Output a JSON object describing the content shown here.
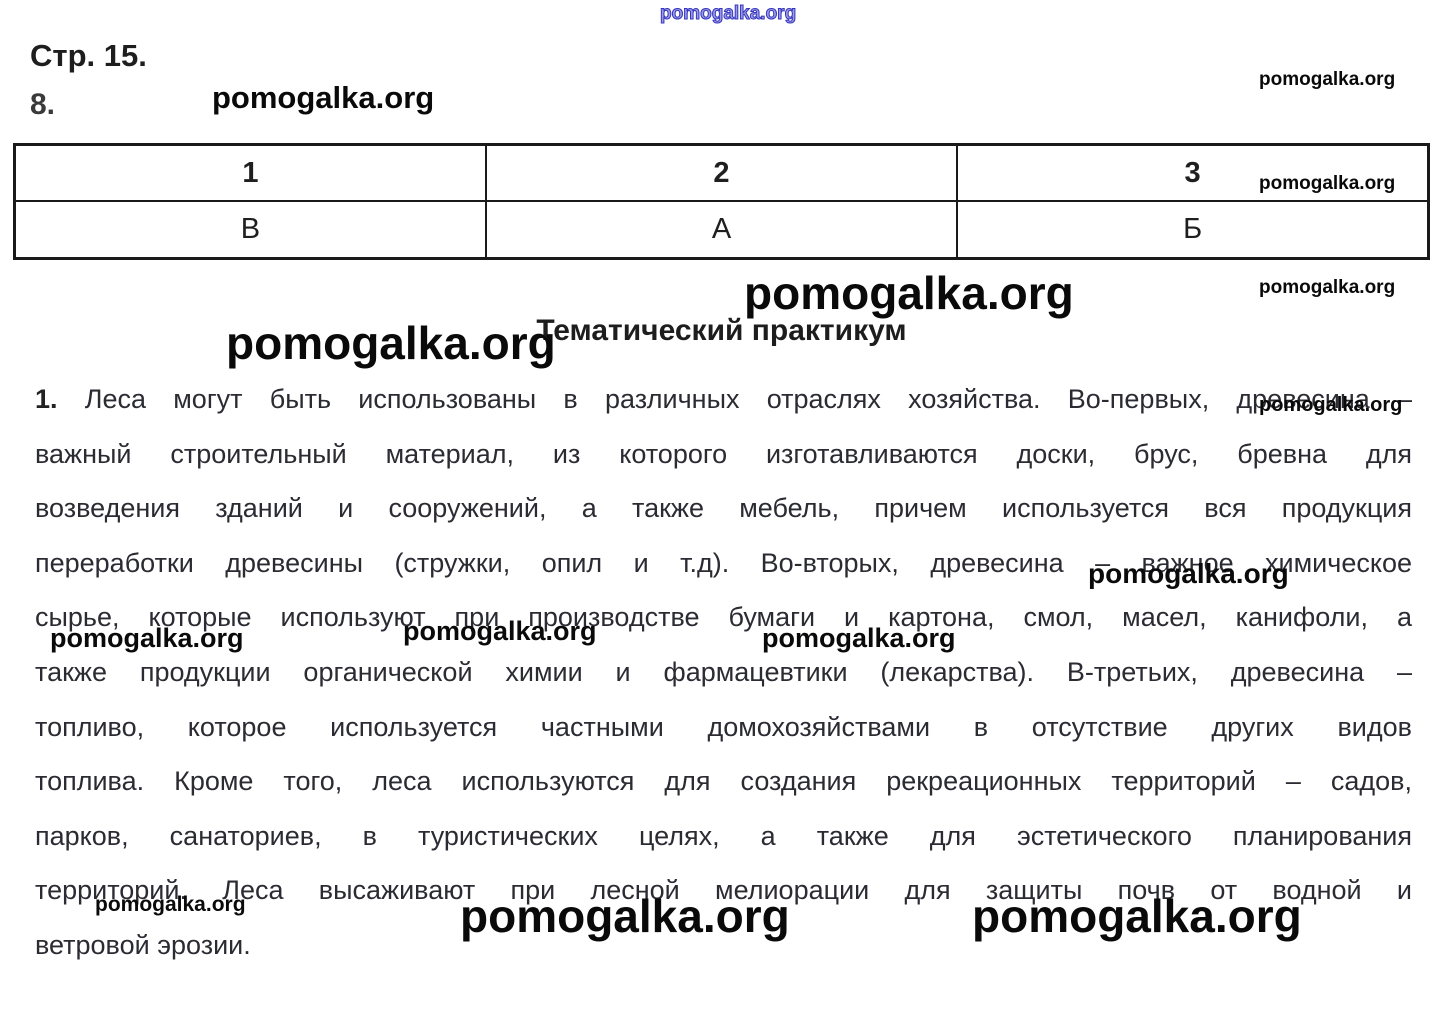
{
  "page": {
    "label": "Стр. 15.",
    "question_number": "8."
  },
  "table": {
    "headers": [
      "1",
      "2",
      "3"
    ],
    "answers": [
      "В",
      "А",
      "Б"
    ]
  },
  "heading": "Тематический практикум",
  "paragraph": {
    "number": "1.",
    "lines": [
      "Леса могут быть использованы в различных отраслях хозяйства. Во-первых, древесина –",
      "важный строительный материал, из которого изготавливаются доски, брус, бревна для",
      "возведения зданий и сооружений, а также мебель, причем используется вся продукция",
      "переработки древесины (стружки, опил и т.д). Во-вторых, древесина – важное химическое",
      "сырье, которые используют при производстве бумаги и картона, смол, масел, канифоли, а",
      "также продукции органической химии и фармацевтики (лекарства). В-третьих, древесина –",
      "топливо, которое используется частными домохозяйствами в отсутствие других видов",
      "топлива. Кроме того, леса используются для создания рекреационных территорий – садов,",
      "парков, санаториев, в туристических целях, а также для эстетического планирования",
      "территорий. Леса высаживают при лесной мелиорации для защиты почв от водной и",
      "ветровой эрозии."
    ]
  },
  "watermark": {
    "text": "pomogalka.org"
  },
  "colors": {
    "body_text": "#2b2b33",
    "table_border": "#1a1a1a",
    "watermark_black": "#0a0a0a",
    "watermark_outline_blue": "#3535c0"
  }
}
